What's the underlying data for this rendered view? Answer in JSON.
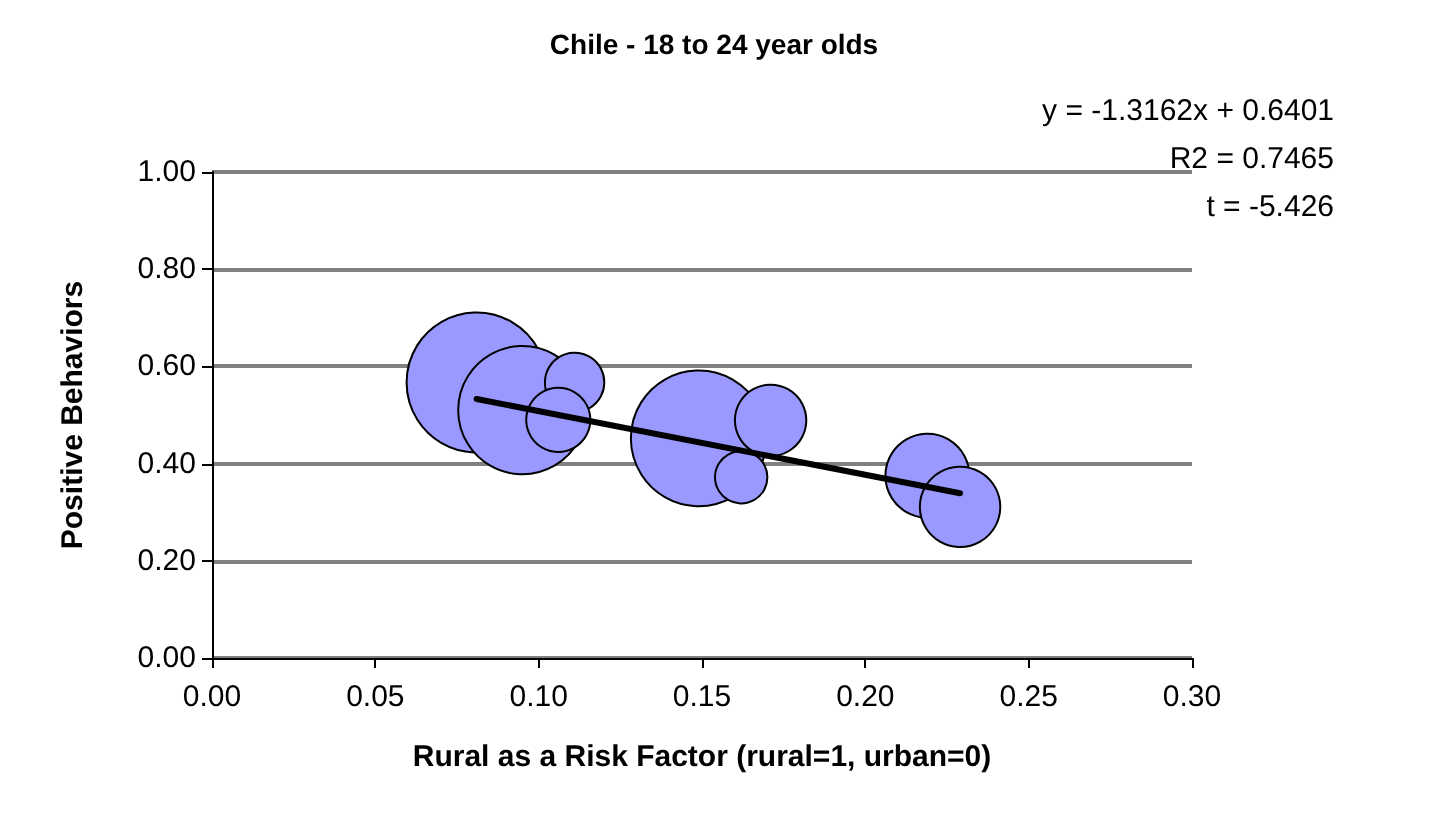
{
  "chart_data": {
    "type": "bubble",
    "title": "Chile - 18 to 24 year olds",
    "xlabel": "Rural as a Risk Factor (rural=1, urban=0)",
    "ylabel": "Positive Behaviors",
    "annotations": [
      "y = -1.3162x + 0.6401",
      "R2 = 0.7465",
      "t = -5.426"
    ],
    "series": [
      {
        "color": "#9999ff",
        "x": [
          0.081,
          0.095,
          0.111,
          0.106,
          0.149,
          0.171,
          0.162,
          0.219,
          0.229
        ],
        "values": [
          0.567,
          0.51,
          0.567,
          0.49,
          0.452,
          0.489,
          0.372,
          0.375,
          0.311
        ],
        "sizes": [
          1,
          0.84,
          0.18,
          0.21,
          0.94,
          0.26,
          0.14,
          0.36,
          0.33
        ]
      },
      {
        "type": "line",
        "color": "#000000",
        "x": [
          0.081,
          0.229
        ],
        "values": [
          0.533,
          0.339
        ]
      }
    ],
    "xlim": [
      0,
      0.3
    ],
    "xticks": [
      {
        "value": 0,
        "label": "0.00"
      },
      {
        "value": 0.05,
        "label": "0.05"
      },
      {
        "value": 0.1,
        "label": "0.10"
      },
      {
        "value": 0.15,
        "label": "0.15"
      },
      {
        "value": 0.2,
        "label": "0.20"
      },
      {
        "value": 0.25,
        "label": "0.25"
      },
      {
        "value": 0.3,
        "label": "0.30"
      }
    ],
    "ylim": [
      0,
      1
    ],
    "yticks": [
      {
        "value": 0,
        "label": "0.00"
      },
      {
        "value": 0.2,
        "label": "0.20"
      },
      {
        "value": 0.4,
        "label": "0.40"
      },
      {
        "value": 0.6,
        "label": "0.60"
      },
      {
        "value": 0.8,
        "label": "0.80"
      },
      {
        "value": 1,
        "label": "1.00"
      }
    ],
    "grid": "y",
    "line_style": "solid"
  }
}
